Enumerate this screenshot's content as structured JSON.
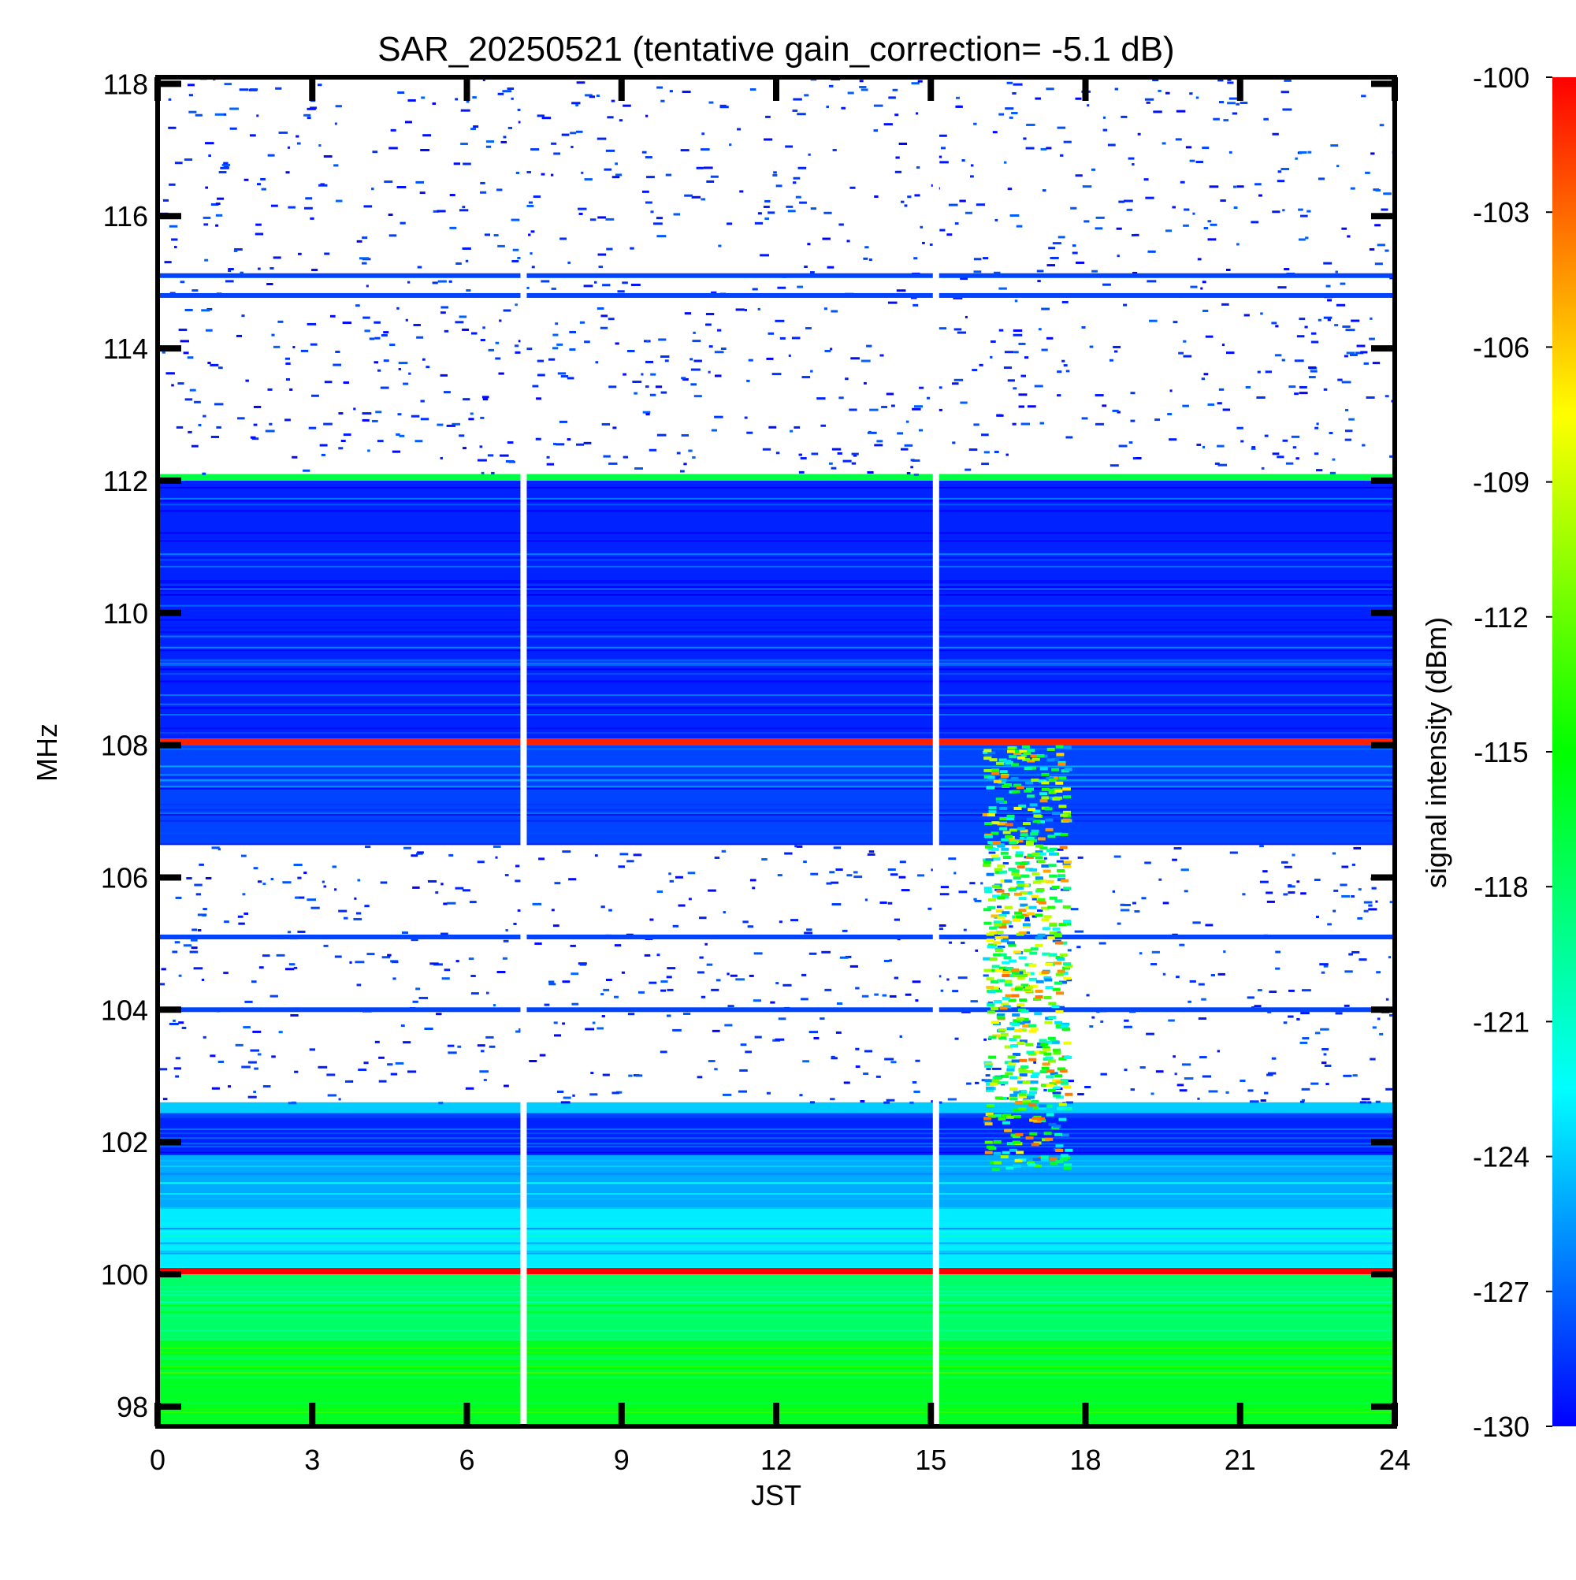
{
  "chart_data": {
    "type": "heatmap",
    "title": "SAR_20250521 (tentative gain_correction= -5.1 dB)",
    "xlabel": "JST",
    "ylabel": "MHz",
    "colorbar_label": "signal intensity (dBm)",
    "xlim": [
      0,
      24
    ],
    "ylim": [
      97.7,
      118.1
    ],
    "x_ticks": [
      0,
      3,
      6,
      9,
      12,
      15,
      18,
      21,
      24
    ],
    "x_tick_labels": [
      "0",
      "3",
      "6",
      "9",
      "12",
      "15",
      "18",
      "21",
      "24"
    ],
    "y_ticks": [
      98,
      100,
      102,
      104,
      106,
      108,
      110,
      112,
      114,
      116,
      118
    ],
    "y_tick_labels": [
      "98",
      "100",
      "102",
      "104",
      "106",
      "108",
      "110",
      "112",
      "114",
      "116",
      "118"
    ],
    "colorbar_range": [
      -130,
      -100
    ],
    "colorbar_ticks": [
      -100,
      -103,
      -106,
      -109,
      -112,
      -115,
      -118,
      -121,
      -124,
      -127,
      -130
    ],
    "colorbar_tick_labels": [
      "-100",
      "-103",
      "-106",
      "-109",
      "-112",
      "-115",
      "-118",
      "-121",
      "-124",
      "-127",
      "-130"
    ],
    "colormap": [
      "#0000ff",
      "#0080ff",
      "#00ffff",
      "#00ff80",
      "#00ff00",
      "#80ff00",
      "#ffff00",
      "#ff8000",
      "#ff0000"
    ],
    "data_gaps_jst": [
      7.1,
      15.1
    ],
    "frequency_bands": [
      {
        "from": 97.7,
        "to": 99.0,
        "level_dbm": -116
      },
      {
        "from": 99.0,
        "to": 100.0,
        "level_dbm": -118
      },
      {
        "from": 100.0,
        "to": 100.1,
        "level_dbm": -100
      },
      {
        "from": 100.1,
        "to": 101.0,
        "level_dbm": -123
      },
      {
        "from": 101.0,
        "to": 101.8,
        "level_dbm": -125
      },
      {
        "from": 101.8,
        "to": 102.4,
        "level_dbm": -129
      },
      {
        "from": 102.4,
        "to": 102.6,
        "level_dbm": -124
      },
      {
        "from": 106.5,
        "to": 108.0,
        "level_dbm": -128
      },
      {
        "from": 108.0,
        "to": 108.1,
        "level_dbm": -101
      },
      {
        "from": 108.1,
        "to": 112.0,
        "level_dbm": -129
      },
      {
        "from": 112.0,
        "to": 112.1,
        "level_dbm": -117
      }
    ],
    "sparse_regions": [
      {
        "from": 102.6,
        "to": 106.5,
        "level_dbm": -130
      },
      {
        "from": 112.1,
        "to": 118.1,
        "level_dbm": -130
      }
    ],
    "persistent_lines_mhz": [
      102.4,
      104.0,
      105.1,
      114.8,
      115.1
    ],
    "burst_event": {
      "t_start": 16.0,
      "t_end": 17.6,
      "f_low": 101.6,
      "f_high": 108.0,
      "peak_dbm": -103
    }
  }
}
